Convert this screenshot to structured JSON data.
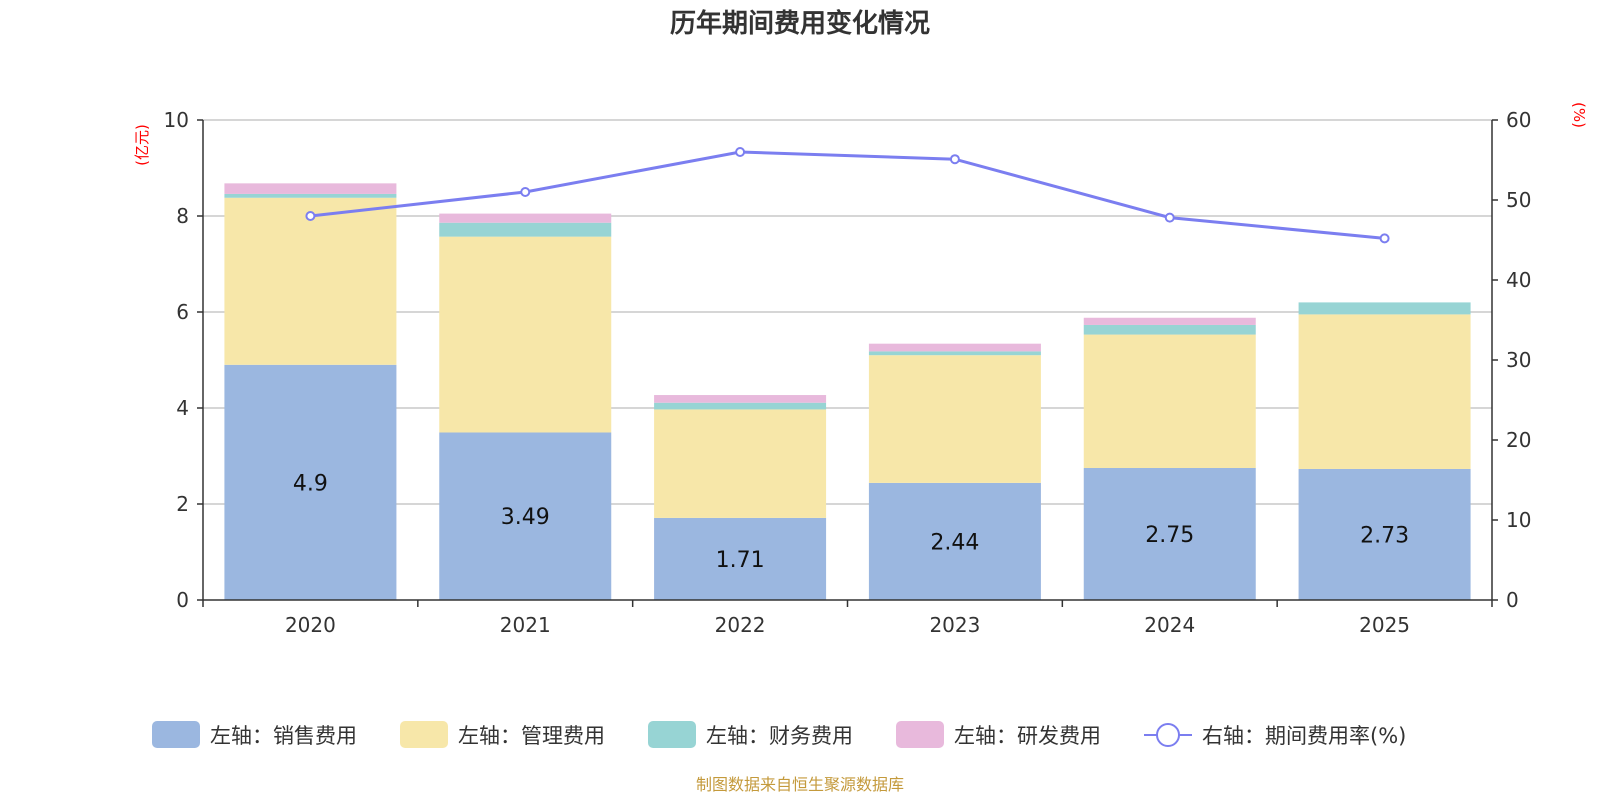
{
  "chart_data": {
    "type": "bar",
    "title": "历年期间费用变化情况",
    "categories": [
      "2020",
      "2021",
      "2022",
      "2023",
      "2024",
      "2025"
    ],
    "left_axis": {
      "unit_label": "(亿元)",
      "ylim": [
        0,
        10
      ],
      "ticks": [
        "0",
        "2",
        "4",
        "6",
        "8",
        "10"
      ]
    },
    "right_axis": {
      "unit_label": "(%)",
      "ylim": [
        0,
        60
      ],
      "ticks": [
        "0",
        "10",
        "20",
        "30",
        "40",
        "50",
        "60"
      ]
    },
    "series": [
      {
        "name": "左轴：销售费用",
        "type": "bar",
        "axis": "left",
        "color": "#9bb7e0",
        "values": [
          4.9,
          3.49,
          1.71,
          2.44,
          2.75,
          2.73
        ],
        "data_labels": [
          "4.9",
          "3.49",
          "1.71",
          "2.44",
          "2.75",
          "2.73"
        ]
      },
      {
        "name": "左轴：管理费用",
        "type": "bar",
        "axis": "left",
        "color": "#f7e7a9",
        "values": [
          3.48,
          4.08,
          2.26,
          2.66,
          2.78,
          3.22
        ]
      },
      {
        "name": "左轴：财务费用",
        "type": "bar",
        "axis": "left",
        "color": "#97d4d4",
        "values": [
          0.08,
          0.29,
          0.14,
          0.08,
          0.2,
          0.25
        ]
      },
      {
        "name": "左轴：研发费用",
        "type": "bar",
        "axis": "left",
        "color": "#e8b9dc",
        "values": [
          0.22,
          0.19,
          0.16,
          0.16,
          0.15,
          0.0
        ]
      },
      {
        "name": "右轴：期间费用率(%)",
        "type": "line",
        "axis": "right",
        "color": "#7b7ef0",
        "values": [
          48.0,
          51.0,
          56.0,
          55.1,
          47.8,
          45.2
        ]
      }
    ],
    "grid": true,
    "legend_position": "bottom"
  },
  "source_text": "制图数据来自恒生聚源数据库",
  "source_color": "#c49a3c"
}
